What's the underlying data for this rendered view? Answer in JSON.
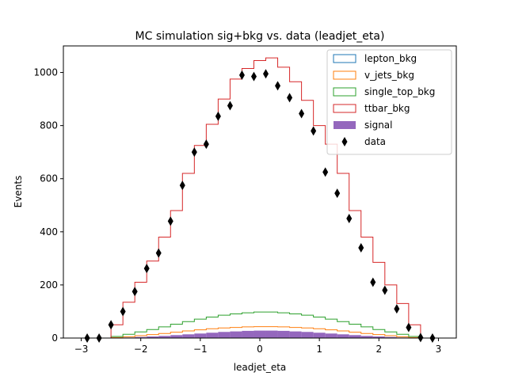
{
  "chart_data": {
    "type": "histogram",
    "title": "MC simulation sig+bkg vs. data (leadjet_eta)",
    "xlabel": "leadjet_eta",
    "ylabel": "Events",
    "xlim": [
      -3.3,
      3.3
    ],
    "ylim": [
      0,
      1100
    ],
    "xticks": [
      -3,
      -2,
      -1,
      0,
      1,
      2,
      3
    ],
    "yticks": [
      0,
      200,
      400,
      600,
      800,
      1000
    ],
    "grid": false,
    "legend_position": "top-right",
    "bin_edges": [
      -2.9,
      -2.7,
      -2.5,
      -2.3,
      -2.1,
      -1.9,
      -1.7,
      -1.5,
      -1.3,
      -1.1,
      -0.9,
      -0.7,
      -0.5,
      -0.3,
      -0.1,
      0.1,
      0.3,
      0.5,
      0.7,
      0.9,
      1.1,
      1.3,
      1.5,
      1.7,
      1.9,
      2.1,
      2.3,
      2.5,
      2.7,
      2.9
    ],
    "series": [
      {
        "name": "lepton_bkg",
        "style": "step",
        "color": "#1f77b4",
        "values": [
          0,
          0,
          0,
          0,
          0,
          0,
          0,
          0,
          0,
          0,
          0,
          0,
          0,
          0,
          0,
          0,
          0,
          0,
          0,
          0,
          0,
          0,
          0,
          0,
          0,
          0,
          0,
          0,
          0
        ]
      },
      {
        "name": "v_jets_bkg",
        "style": "step",
        "color": "#ff7f0e",
        "values": [
          0,
          0,
          2,
          5,
          9,
          13,
          17,
          22,
          27,
          31,
          35,
          38,
          40,
          42,
          43,
          43,
          42,
          40,
          38,
          35,
          31,
          27,
          22,
          17,
          13,
          9,
          5,
          2,
          0
        ]
      },
      {
        "name": "single_top_bkg",
        "style": "step",
        "color": "#2ca02c",
        "values": [
          0,
          0,
          6,
          14,
          23,
          32,
          42,
          52,
          62,
          71,
          79,
          86,
          91,
          95,
          98,
          98,
          95,
          91,
          86,
          79,
          71,
          62,
          52,
          42,
          32,
          23,
          14,
          6,
          0
        ]
      },
      {
        "name": "ttbar_bkg",
        "style": "step",
        "color": "#d62728",
        "values": [
          0,
          0,
          50,
          135,
          210,
          290,
          380,
          480,
          620,
          725,
          805,
          900,
          975,
          1015,
          1045,
          1055,
          1020,
          965,
          895,
          800,
          730,
          620,
          480,
          380,
          285,
          200,
          130,
          50,
          0
        ]
      },
      {
        "name": "signal",
        "style": "filled",
        "color": "#9467bd",
        "values": [
          0,
          0,
          1,
          2,
          4,
          6,
          8,
          11,
          14,
          17,
          20,
          23,
          25,
          27,
          28,
          28,
          27,
          25,
          23,
          20,
          17,
          14,
          11,
          8,
          6,
          4,
          2,
          1,
          0
        ]
      },
      {
        "name": "data",
        "style": "points",
        "color": "#000000",
        "x": [
          -2.9,
          -2.7,
          -2.5,
          -2.3,
          -2.1,
          -1.9,
          -1.7,
          -1.5,
          -1.3,
          -1.1,
          -0.9,
          -0.7,
          -0.5,
          -0.3,
          -0.1,
          0.1,
          0.3,
          0.5,
          0.7,
          0.9,
          1.1,
          1.3,
          1.5,
          1.7,
          1.9,
          2.1,
          2.3,
          2.5,
          2.7,
          2.9
        ],
        "values": [
          0,
          0,
          50,
          100,
          175,
          262,
          320,
          440,
          575,
          700,
          730,
          835,
          875,
          990,
          985,
          995,
          950,
          905,
          845,
          780,
          625,
          545,
          450,
          340,
          210,
          180,
          110,
          40,
          2,
          0
        ]
      }
    ]
  }
}
